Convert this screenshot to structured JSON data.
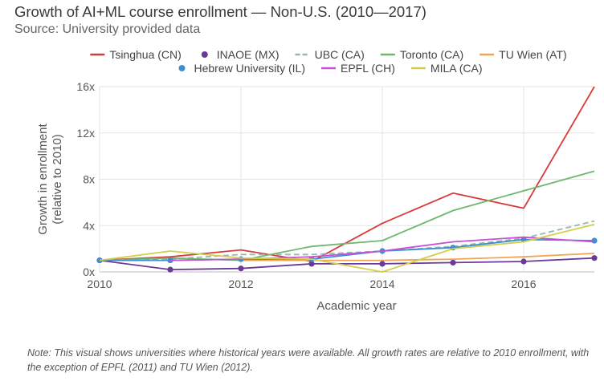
{
  "chart_data": {
    "type": "line",
    "title": "Growth of AI+ML course enrollment — Non-U.S. (2010—2017)",
    "subtitle": "Source: University provided data",
    "xlabel": "Academic year",
    "ylabel_line1": "Growth in enrollment",
    "ylabel_line2": "(relative to 2010)",
    "xlim": [
      2010,
      2017
    ],
    "ylim": [
      0,
      16
    ],
    "x_ticks": [
      {
        "value": 2010,
        "label": "2010"
      },
      {
        "value": 2012,
        "label": "2012"
      },
      {
        "value": 2014,
        "label": "2014"
      },
      {
        "value": 2016,
        "label": "2016"
      }
    ],
    "y_ticks": [
      {
        "value": 0,
        "label": "0x"
      },
      {
        "value": 4,
        "label": "4x"
      },
      {
        "value": 8,
        "label": "8x"
      },
      {
        "value": 12,
        "label": "12x"
      },
      {
        "value": 16,
        "label": "16x"
      }
    ],
    "grid": true,
    "legend_position": "top",
    "series": [
      {
        "name": "Tsinghua (CN)",
        "color": "#d83a3a",
        "marker": "dash",
        "points": [
          [
            2010,
            1.0
          ],
          [
            2011,
            1.3
          ],
          [
            2012,
            1.9
          ],
          [
            2013,
            0.9
          ],
          [
            2014,
            4.2
          ],
          [
            2015,
            6.8
          ],
          [
            2016,
            5.5
          ],
          [
            2017,
            16.0
          ]
        ]
      },
      {
        "name": "INAOE (MX)",
        "color": "#6a3a9a",
        "marker": "dot",
        "points": [
          [
            2010,
            1.0
          ],
          [
            2011,
            0.2
          ],
          [
            2012,
            0.3
          ],
          [
            2013,
            0.7
          ],
          [
            2014,
            0.7
          ],
          [
            2015,
            0.8
          ],
          [
            2016,
            0.9
          ],
          [
            2017,
            1.2
          ]
        ]
      },
      {
        "name": "UBC (CA)",
        "color": "#9ab5b5",
        "marker": "dash",
        "dashed": true,
        "points": [
          [
            2010,
            1.0
          ],
          [
            2011,
            1.1
          ],
          [
            2012,
            1.5
          ],
          [
            2013,
            1.5
          ],
          [
            2014,
            1.8
          ],
          [
            2015,
            2.2
          ],
          [
            2016,
            2.9
          ],
          [
            2017,
            4.4
          ]
        ]
      },
      {
        "name": "Toronto (CA)",
        "color": "#6db86d",
        "marker": "dash",
        "points": [
          [
            2010,
            1.0
          ],
          [
            2011,
            1.2
          ],
          [
            2012,
            1.0
          ],
          [
            2013,
            2.2
          ],
          [
            2014,
            2.7
          ],
          [
            2015,
            5.3
          ],
          [
            2016,
            7.0
          ],
          [
            2017,
            8.7
          ]
        ]
      },
      {
        "name": "TU Wien (AT)",
        "color": "#f2a455",
        "marker": "dash",
        "points": [
          [
            2012,
            1.0
          ],
          [
            2013,
            1.0
          ],
          [
            2014,
            1.0
          ],
          [
            2015,
            1.1
          ],
          [
            2016,
            1.3
          ],
          [
            2017,
            1.6
          ]
        ]
      },
      {
        "name": "Hebrew University (IL)",
        "color": "#3b8fd4",
        "marker": "dot",
        "points": [
          [
            2010,
            1.0
          ],
          [
            2011,
            1.0
          ],
          [
            2012,
            1.1
          ],
          [
            2013,
            1.1
          ],
          [
            2014,
            1.8
          ],
          [
            2015,
            2.1
          ],
          [
            2016,
            2.8
          ],
          [
            2017,
            2.7
          ]
        ]
      },
      {
        "name": "EPFL (CH)",
        "color": "#c84fd6",
        "marker": "dash",
        "points": [
          [
            2011,
            1.0
          ],
          [
            2012,
            1.1
          ],
          [
            2013,
            1.3
          ],
          [
            2014,
            1.8
          ],
          [
            2015,
            2.6
          ],
          [
            2016,
            3.0
          ],
          [
            2017,
            2.6
          ]
        ]
      },
      {
        "name": "MILA (CA)",
        "color": "#d4cf4a",
        "marker": "dash",
        "points": [
          [
            2010,
            1.0
          ],
          [
            2011,
            1.8
          ],
          [
            2012,
            1.2
          ],
          [
            2013,
            1.1
          ],
          [
            2014,
            0.0
          ],
          [
            2015,
            2.0
          ],
          [
            2016,
            2.6
          ],
          [
            2017,
            4.1
          ]
        ]
      }
    ],
    "note": "Note: This visual shows universities where historical years were available. All growth rates are relative to 2010 enrollment, with the exception of EPFL (2011) and TU Wien (2012)."
  }
}
